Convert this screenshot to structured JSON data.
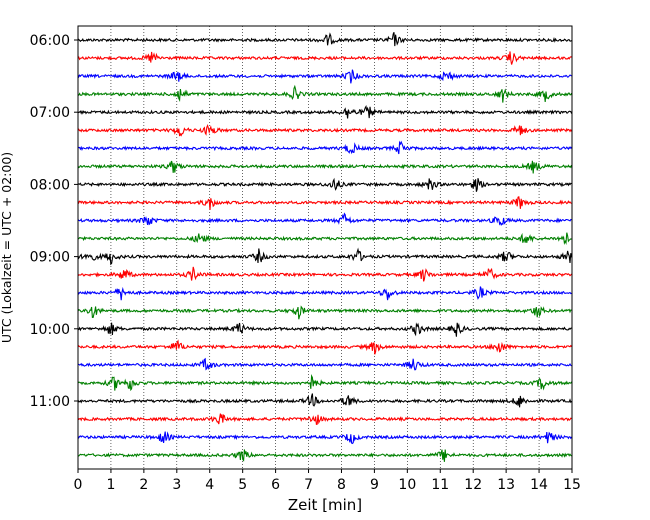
{
  "chart_data": {
    "type": "line",
    "title": "",
    "xlabel": "Zeit  [min]",
    "ylabel": "UTC (Lokalzeit = UTC + 02:00)",
    "xlim": [
      0,
      15
    ],
    "x_ticks": [
      "0",
      "1",
      "2",
      "3",
      "4",
      "5",
      "6",
      "7",
      "8",
      "9",
      "10",
      "11",
      "12",
      "13",
      "14",
      "15"
    ],
    "y_tick_labels": [
      "06:00",
      "07:00",
      "08:00",
      "09:00",
      "10:00",
      "11:00"
    ],
    "grid": "vertical dotted lines at each minute",
    "trace_colors": [
      "#000000",
      "#ff0000",
      "#0000ff",
      "#008000"
    ],
    "traces": [
      {
        "label": "06:00",
        "color": "#000000",
        "events": [
          7.6,
          9.6
        ]
      },
      {
        "label": "06:15",
        "color": "#ff0000",
        "events": [
          2.25,
          13.15
        ]
      },
      {
        "label": "06:30",
        "color": "#0000ff",
        "events": [
          3.0,
          8.3,
          11.2
        ]
      },
      {
        "label": "06:45",
        "color": "#008000",
        "events": [
          3.1,
          6.6,
          12.9,
          14.2
        ]
      },
      {
        "label": "07:00",
        "color": "#000000",
        "events": [
          8.2,
          8.8
        ]
      },
      {
        "label": "07:15",
        "color": "#ff0000",
        "events": [
          3.1,
          4.0,
          13.4
        ]
      },
      {
        "label": "07:30",
        "color": "#0000ff",
        "events": [
          8.3,
          9.8
        ]
      },
      {
        "label": "07:45",
        "color": "#008000",
        "events": [
          2.9,
          13.85
        ]
      },
      {
        "label": "08:00",
        "color": "#000000",
        "events": [
          7.8,
          10.7,
          12.1
        ]
      },
      {
        "label": "08:15",
        "color": "#ff0000",
        "events": [
          4.0,
          13.4
        ]
      },
      {
        "label": "08:30",
        "color": "#0000ff",
        "events": [
          2.1,
          8.1,
          12.8
        ]
      },
      {
        "label": "08:45",
        "color": "#008000",
        "events": [
          3.7,
          13.6,
          14.8
        ]
      },
      {
        "label": "09:00",
        "color": "#000000",
        "events": [
          0.35,
          1.0,
          5.5,
          8.5,
          13.0,
          14.9
        ]
      },
      {
        "label": "09:15",
        "color": "#ff0000",
        "events": [
          1.4,
          3.5,
          10.5,
          12.5
        ]
      },
      {
        "label": "09:30",
        "color": "#0000ff",
        "events": [
          1.3,
          9.4,
          12.2
        ]
      },
      {
        "label": "09:45",
        "color": "#008000",
        "events": [
          0.45,
          6.7,
          13.95
        ]
      },
      {
        "label": "10:00",
        "color": "#000000",
        "events": [
          1.0,
          4.9,
          10.3,
          11.5
        ]
      },
      {
        "label": "10:15",
        "color": "#ff0000",
        "events": [
          3.0,
          9.0,
          12.8
        ]
      },
      {
        "label": "10:30",
        "color": "#0000ff",
        "events": [
          3.9,
          10.2
        ]
      },
      {
        "label": "10:45",
        "color": "#008000",
        "events": [
          1.1,
          1.6,
          7.1,
          14.1
        ]
      },
      {
        "label": "11:00",
        "color": "#000000",
        "events": [
          7.1,
          8.2,
          13.4
        ]
      },
      {
        "label": "11:15",
        "color": "#ff0000",
        "events": [
          4.3,
          7.2
        ]
      },
      {
        "label": "11:30",
        "color": "#0000ff",
        "events": [
          2.6,
          8.3,
          14.3
        ]
      },
      {
        "label": "11:45",
        "color": "#008000",
        "events": [
          5.0,
          11.1
        ]
      }
    ]
  }
}
